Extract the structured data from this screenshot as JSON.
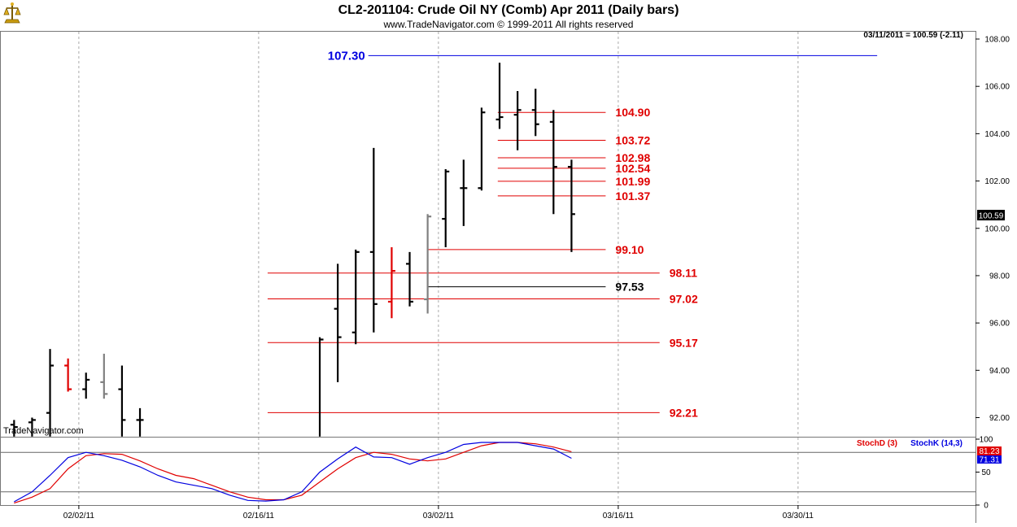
{
  "app": {
    "title": "CL2-201104:  Crude Oil NY (Comb) Apr 2011  (Daily bars)",
    "subtitle": "www.TradeNavigator.com © 1999-2011 All rights reserved",
    "watermark": "TradeNavigator.com",
    "logo_icon": "trade-navigator-logo-icon",
    "last_info": "03/11/2011 = 100.59 (-2.11)",
    "last_price_badge": "100.59"
  },
  "colors": {
    "up": "#000000",
    "red_bar": "#e00000",
    "gray_bar": "#808080",
    "red_line": "#e00000",
    "blue_line": "#0000e0",
    "black_line": "#000000",
    "stoch_d": "#e00000",
    "stoch_k": "#0000e0",
    "grid": "#aaaaaa"
  },
  "chart_data": {
    "type": "ohlc",
    "title": "CL2-201104:  Crude Oil NY (Comb) Apr 2011  (Daily bars)",
    "y_ticks": [
      "108.00",
      "106.00",
      "104.00",
      "102.00",
      "100.00",
      "98.00",
      "96.00",
      "94.00",
      "92.00"
    ],
    "ylim": [
      91.2,
      108.6
    ],
    "x_tick_labels": [
      "02/02/11",
      "02/16/11",
      "03/02/11",
      "03/16/11",
      "03/30/11"
    ],
    "x_tick_slots": [
      3.9,
      13.9,
      23.9,
      33.9,
      43.9
    ],
    "bars": [
      {
        "slot": 0.3,
        "o": 91.7,
        "h": 91.9,
        "l": 91.2,
        "c": 91.6,
        "color": "black"
      },
      {
        "slot": 1.3,
        "o": 91.8,
        "h": 92.0,
        "l": 91.2,
        "c": 91.9,
        "color": "black"
      },
      {
        "slot": 2.3,
        "o": 92.2,
        "h": 94.9,
        "l": 91.2,
        "c": 94.2,
        "color": "black"
      },
      {
        "slot": 3.3,
        "o": 94.2,
        "h": 94.5,
        "l": 93.1,
        "c": 93.2,
        "color": "red"
      },
      {
        "slot": 4.3,
        "o": 93.2,
        "h": 93.9,
        "l": 92.8,
        "c": 93.6,
        "color": "black"
      },
      {
        "slot": 5.3,
        "o": 93.5,
        "h": 94.7,
        "l": 92.8,
        "c": 93.0,
        "color": "gray"
      },
      {
        "slot": 6.3,
        "o": 93.2,
        "h": 94.2,
        "l": 91.2,
        "c": 91.9,
        "color": "black"
      },
      {
        "slot": 7.3,
        "o": 91.9,
        "h": 92.4,
        "l": 91.2,
        "c": 91.9,
        "color": "black"
      },
      {
        "slot": 17.3,
        "o": 91.2,
        "h": 95.4,
        "l": 91.2,
        "c": 95.3,
        "color": "black"
      },
      {
        "slot": 18.3,
        "o": 96.6,
        "h": 98.5,
        "l": 93.5,
        "c": 95.4,
        "color": "black"
      },
      {
        "slot": 19.3,
        "o": 95.6,
        "h": 99.1,
        "l": 95.1,
        "c": 99.0,
        "color": "black"
      },
      {
        "slot": 20.3,
        "o": 99.0,
        "h": 103.4,
        "l": 95.6,
        "c": 96.8,
        "color": "black"
      },
      {
        "slot": 21.3,
        "o": 96.9,
        "h": 99.2,
        "l": 96.2,
        "c": 98.2,
        "color": "red"
      },
      {
        "slot": 22.3,
        "o": 98.5,
        "h": 99.0,
        "l": 96.7,
        "c": 96.9,
        "color": "black"
      },
      {
        "slot": 23.3,
        "o": 97.0,
        "h": 100.6,
        "l": 96.4,
        "c": 100.5,
        "color": "gray"
      },
      {
        "slot": 24.3,
        "o": 100.4,
        "h": 102.5,
        "l": 99.2,
        "c": 102.4,
        "color": "black"
      },
      {
        "slot": 25.3,
        "o": 101.7,
        "h": 102.9,
        "l": 100.1,
        "c": 101.7,
        "color": "black"
      },
      {
        "slot": 26.3,
        "o": 101.7,
        "h": 105.1,
        "l": 101.6,
        "c": 104.9,
        "color": "black"
      },
      {
        "slot": 27.3,
        "o": 104.6,
        "h": 107.0,
        "l": 104.2,
        "c": 104.7,
        "color": "black"
      },
      {
        "slot": 28.3,
        "o": 104.8,
        "h": 105.8,
        "l": 103.3,
        "c": 105.0,
        "color": "black"
      },
      {
        "slot": 29.3,
        "o": 105.0,
        "h": 105.9,
        "l": 103.9,
        "c": 104.4,
        "color": "black"
      },
      {
        "slot": 30.3,
        "o": 104.5,
        "h": 105.0,
        "l": 100.6,
        "c": 102.6,
        "color": "black"
      },
      {
        "slot": 31.3,
        "o": 102.6,
        "h": 102.9,
        "l": 99.0,
        "c": 100.6,
        "color": "black"
      }
    ],
    "levels": [
      {
        "label": "107.30",
        "value": 107.3,
        "from_slot": 20.0,
        "to_slot": 48.3,
        "color": "blue",
        "label_side": "left"
      },
      {
        "label": "104.90",
        "value": 104.9,
        "from_slot": 27.2,
        "to_slot": 33.2,
        "color": "red",
        "label_side": "right"
      },
      {
        "label": "103.72",
        "value": 103.72,
        "from_slot": 27.2,
        "to_slot": 33.2,
        "color": "red",
        "label_side": "right"
      },
      {
        "label": "102.98",
        "value": 102.98,
        "from_slot": 27.2,
        "to_slot": 33.2,
        "color": "red",
        "label_side": "right"
      },
      {
        "label": "102.54",
        "value": 102.54,
        "from_slot": 27.2,
        "to_slot": 33.2,
        "color": "red",
        "label_side": "right"
      },
      {
        "label": "101.99",
        "value": 101.99,
        "from_slot": 27.2,
        "to_slot": 33.2,
        "color": "red",
        "label_side": "right"
      },
      {
        "label": "101.37",
        "value": 101.37,
        "from_slot": 27.2,
        "to_slot": 33.2,
        "color": "red",
        "label_side": "right"
      },
      {
        "label": "99.10",
        "value": 99.1,
        "from_slot": 23.3,
        "to_slot": 33.2,
        "color": "red",
        "label_side": "right"
      },
      {
        "label": "98.11",
        "value": 98.11,
        "from_slot": 14.4,
        "to_slot": 36.2,
        "color": "red",
        "label_side": "right"
      },
      {
        "label": "97.53",
        "value": 97.53,
        "from_slot": 23.3,
        "to_slot": 33.2,
        "color": "black",
        "label_side": "right"
      },
      {
        "label": "97.02",
        "value": 97.02,
        "from_slot": 14.4,
        "to_slot": 36.2,
        "color": "red",
        "label_side": "right"
      },
      {
        "label": "95.17",
        "value": 95.17,
        "from_slot": 14.4,
        "to_slot": 36.2,
        "color": "red",
        "label_side": "right"
      },
      {
        "label": "92.21",
        "value": 92.21,
        "from_slot": 14.4,
        "to_slot": 36.2,
        "color": "red",
        "label_side": "right"
      }
    ],
    "stochastic": {
      "d_label": "StochD (3)",
      "k_label": "StochK (14,3)",
      "y_ticks": [
        "100",
        "50",
        "0"
      ],
      "ylim": [
        0,
        100
      ],
      "hlines": [
        80,
        20
      ],
      "last_d": "81.23",
      "last_k": "71.31",
      "k_points": [
        [
          0.3,
          5
        ],
        [
          1.3,
          20
        ],
        [
          2.3,
          45
        ],
        [
          3.3,
          72
        ],
        [
          4.3,
          80
        ],
        [
          5.3,
          75
        ],
        [
          6.3,
          68
        ],
        [
          7.3,
          58
        ],
        [
          8.3,
          45
        ],
        [
          9.3,
          35
        ],
        [
          10.3,
          30
        ],
        [
          11.3,
          25
        ],
        [
          12.3,
          15
        ],
        [
          13.3,
          7
        ],
        [
          14.3,
          6
        ],
        [
          15.3,
          8
        ],
        [
          16.3,
          20
        ],
        [
          17.3,
          50
        ],
        [
          18.3,
          70
        ],
        [
          19.3,
          88
        ],
        [
          20.3,
          73
        ],
        [
          21.3,
          72
        ],
        [
          22.3,
          62
        ],
        [
          23.3,
          72
        ],
        [
          24.3,
          80
        ],
        [
          25.3,
          92
        ],
        [
          26.3,
          95
        ],
        [
          27.3,
          95
        ],
        [
          28.3,
          95
        ],
        [
          29.3,
          90
        ],
        [
          30.3,
          85
        ],
        [
          31.3,
          71
        ]
      ],
      "d_points": [
        [
          0.3,
          3
        ],
        [
          1.3,
          12
        ],
        [
          2.3,
          25
        ],
        [
          3.3,
          55
        ],
        [
          4.3,
          75
        ],
        [
          5.3,
          78
        ],
        [
          6.3,
          77
        ],
        [
          7.3,
          67
        ],
        [
          8.3,
          55
        ],
        [
          9.3,
          45
        ],
        [
          10.3,
          40
        ],
        [
          11.3,
          30
        ],
        [
          12.3,
          20
        ],
        [
          13.3,
          12
        ],
        [
          14.3,
          8
        ],
        [
          15.3,
          8
        ],
        [
          16.3,
          15
        ],
        [
          17.3,
          35
        ],
        [
          18.3,
          55
        ],
        [
          19.3,
          72
        ],
        [
          20.3,
          80
        ],
        [
          21.3,
          77
        ],
        [
          22.3,
          70
        ],
        [
          23.3,
          67
        ],
        [
          24.3,
          70
        ],
        [
          25.3,
          80
        ],
        [
          26.3,
          90
        ],
        [
          27.3,
          95
        ],
        [
          28.3,
          95
        ],
        [
          29.3,
          93
        ],
        [
          30.3,
          88
        ],
        [
          31.3,
          81
        ]
      ]
    }
  }
}
